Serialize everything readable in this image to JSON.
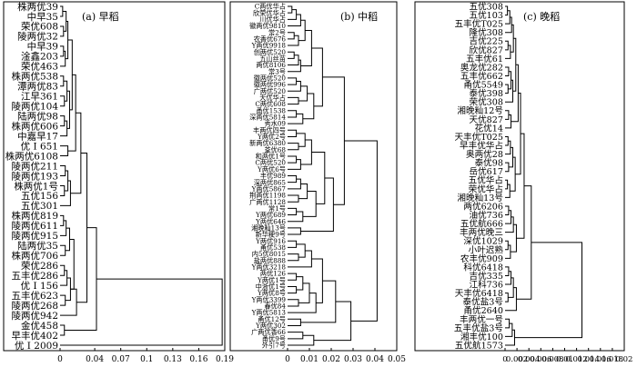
{
  "chart_data": [
    {
      "type": "dendrogram",
      "title": "(a) 早稻",
      "xlim": [
        0,
        0.19
      ],
      "xticks": [
        0,
        0.04,
        0.07,
        0.1,
        0.13,
        0.16,
        0.19
      ],
      "leaves": [
        "株两优39",
        "中早35",
        "荣优608",
        "陵两优32",
        "中早39",
        "淦鑫203",
        "荣优463",
        "株两优538",
        "潭两优83",
        "江早361",
        "陵两优104",
        "陆两优98",
        "株两优606",
        "中嘉早17",
        "优 I 651",
        "株两优6108",
        "陵两优211",
        "陵两优193",
        "株两优1号",
        "五优156",
        "五优301",
        "株两优819",
        "陵两优611",
        "陵两优915",
        "陆两优35",
        "株两优706",
        "荣优286",
        "五丰优286",
        "优 I 156",
        "五丰优623",
        "陵两优268",
        "陵两优942",
        "金优458",
        "早丰优402",
        "优 I 2009"
      ],
      "merges": [
        [
          0,
          1,
          0.003
        ],
        [
          2,
          3,
          0.004
        ],
        [
          -1,
          -2,
          0.007
        ],
        [
          4,
          5,
          0.004
        ],
        [
          -4,
          6,
          0.006
        ],
        [
          -3,
          -5,
          0.009
        ],
        [
          7,
          8,
          0.004
        ],
        [
          9,
          10,
          0.005
        ],
        [
          -7,
          -8,
          0.008
        ],
        [
          11,
          12,
          0.005
        ],
        [
          -10,
          13,
          0.008
        ],
        [
          -9,
          -11,
          0.011
        ],
        [
          -6,
          -12,
          0.014
        ],
        [
          14,
          15,
          0.009
        ],
        [
          -13,
          -14,
          0.018
        ],
        [
          16,
          17,
          0.006
        ],
        [
          18,
          19,
          0.005
        ],
        [
          -16,
          -17,
          0.009
        ],
        [
          -18,
          20,
          0.012
        ],
        [
          -15,
          -19,
          0.024
        ],
        [
          21,
          22,
          0.004
        ],
        [
          -21,
          23,
          0.007
        ],
        [
          24,
          25,
          0.006
        ],
        [
          -22,
          -23,
          0.011
        ],
        [
          26,
          27,
          0.005
        ],
        [
          -25,
          28,
          0.008
        ],
        [
          29,
          30,
          0.006
        ],
        [
          -26,
          -27,
          0.012
        ],
        [
          -24,
          -28,
          0.016
        ],
        [
          -28,
          31,
          0.019
        ],
        [
          -20,
          -30,
          0.031
        ],
        [
          32,
          33,
          0.005
        ],
        [
          -31,
          -32,
          0.042
        ],
        [
          -33,
          34,
          0.187
        ]
      ]
    },
    {
      "type": "dendrogram",
      "title": "(b) 中稻",
      "xlim": [
        0,
        0.05
      ],
      "xticks": [
        0,
        0.01,
        0.02,
        0.03,
        0.04,
        0.05
      ],
      "leaves": [
        "C两优华占",
        "欣荣优华占",
        "川优华占",
        "徽两优9810",
        "常2号",
        "农香优676",
        "Y两优9918",
        "创两优520",
        "五山丝苗",
        "两优8106",
        "常3号",
        "徽两优520",
        "徽两优996",
        "广两优520",
        "天优华占",
        "C两优608",
        "甬优1538",
        "深两优5814",
        "秀水09",
        "丰两优四号",
        "Y两优2号",
        "新两优6380",
        "荃优68",
        "和两优1号",
        "C两优520",
        "Y两优6号",
        "丰优989",
        "深两优865",
        "Y两优5867",
        "荆两优1198",
        "广两优1128",
        "常1号",
        "Y两优689",
        "Y两优646",
        "湘晚籼13号",
        "新华粳9号",
        "Y两优916",
        "甬优538",
        "内5优8015",
        "盐两优888",
        "Y两优3218",
        "两优126",
        "Y两优1号",
        "中浙优1号",
        "Y两优8号",
        "Y两优3399",
        "春优84",
        "Y两优5813",
        "甬优12号",
        "Y两优302",
        "广两优香66",
        "甬优9号",
        "外引7号"
      ],
      "merges": [
        [
          0,
          1,
          0.002
        ],
        [
          -1,
          2,
          0.004
        ],
        [
          -2,
          3,
          0.006
        ],
        [
          4,
          5,
          0.003
        ],
        [
          -4,
          6,
          0.005
        ],
        [
          -3,
          -5,
          0.008
        ],
        [
          7,
          8,
          0.003
        ],
        [
          -7,
          9,
          0.005
        ],
        [
          -8,
          10,
          0.006
        ],
        [
          -6,
          -9,
          0.011
        ],
        [
          11,
          12,
          0.004
        ],
        [
          -11,
          13,
          0.006
        ],
        [
          14,
          15,
          0.005
        ],
        [
          -12,
          -13,
          0.009
        ],
        [
          16,
          17,
          0.004
        ],
        [
          -15,
          18,
          0.007
        ],
        [
          -14,
          -16,
          0.012
        ],
        [
          -10,
          -17,
          0.016
        ],
        [
          19,
          20,
          0.004
        ],
        [
          21,
          22,
          0.005
        ],
        [
          -19,
          -20,
          0.008
        ],
        [
          23,
          24,
          0.004
        ],
        [
          -22,
          25,
          0.006
        ],
        [
          -21,
          -23,
          0.011
        ],
        [
          26,
          27,
          0.004
        ],
        [
          -25,
          28,
          0.006
        ],
        [
          29,
          30,
          0.005
        ],
        [
          -26,
          -27,
          0.009
        ],
        [
          31,
          32,
          0.004
        ],
        [
          -29,
          33,
          0.007
        ],
        [
          -28,
          -30,
          0.013
        ],
        [
          -24,
          -31,
          0.017
        ],
        [
          34,
          35,
          0.006
        ],
        [
          -32,
          -33,
          0.021
        ],
        [
          -18,
          -34,
          0.026
        ],
        [
          36,
          37,
          0.004
        ],
        [
          38,
          39,
          0.005
        ],
        [
          -36,
          -37,
          0.008
        ],
        [
          -38,
          40,
          0.011
        ],
        [
          41,
          42,
          0.004
        ],
        [
          43,
          44,
          0.004
        ],
        [
          -40,
          -41,
          0.007
        ],
        [
          45,
          46,
          0.005
        ],
        [
          -42,
          -43,
          0.01
        ],
        [
          -44,
          47,
          0.013
        ],
        [
          -39,
          -45,
          0.016
        ],
        [
          48,
          49,
          0.006
        ],
        [
          -46,
          -47,
          0.022
        ],
        [
          50,
          51,
          0.007
        ],
        [
          -49,
          52,
          0.012
        ],
        [
          -48,
          -50,
          0.029
        ],
        [
          -35,
          -51,
          0.041
        ]
      ]
    },
    {
      "type": "dendrogram",
      "title": "(c) 晚稻",
      "xlim": [
        0,
        0.02
      ],
      "xticks": [
        0,
        0.002,
        0.004,
        0.006,
        0.008,
        0.01,
        0.012,
        0.014,
        0.016,
        0.018,
        0.02
      ],
      "leaves": [
        "五优308",
        "五优103",
        "五丰优T025",
        "隆优308",
        "吉优225",
        "欣优827",
        "五丰优61",
        "奥龙优282",
        "五丰优662",
        "甬优5549",
        "泰优398",
        "荣优308",
        "湘晚籼12号",
        "天优827",
        "花优14",
        "天丰优T025",
        "早丰优华占",
        "奥两优28",
        "泰优98",
        "岳优617",
        "五优华占",
        "荣优华占",
        "湘晚籼13号",
        "两优6206",
        "油优736",
        "五优航666",
        "丰两优晚三",
        "深优1029",
        "小叶迟熟",
        "农丰优909",
        "科优6418",
        "吉优335",
        "江科736",
        "天丰优6418",
        "泰优盐3号",
        "甬优2640",
        "丰两优一号",
        "五丰优盐3号",
        "湘丰优100",
        "五优航1573"
      ],
      "merges": [
        [
          0,
          1,
          0.0004
        ],
        [
          -1,
          2,
          0.0008
        ],
        [
          -2,
          3,
          0.0011
        ],
        [
          4,
          5,
          0.0005
        ],
        [
          -4,
          6,
          0.0009
        ],
        [
          -3,
          -5,
          0.0014
        ],
        [
          7,
          8,
          0.0006
        ],
        [
          9,
          10,
          0.0005
        ],
        [
          -7,
          -8,
          0.001
        ],
        [
          -9,
          11,
          0.0013
        ],
        [
          -6,
          -10,
          0.0018
        ],
        [
          12,
          13,
          0.0006
        ],
        [
          -12,
          14,
          0.001
        ],
        [
          -11,
          -13,
          0.0022
        ],
        [
          15,
          16,
          0.0005
        ],
        [
          -15,
          17,
          0.0009
        ],
        [
          18,
          19,
          0.0006
        ],
        [
          -16,
          -17,
          0.0013
        ],
        [
          20,
          21,
          0.0004
        ],
        [
          -19,
          22,
          0.0008
        ],
        [
          -18,
          -20,
          0.0017
        ],
        [
          -14,
          -21,
          0.0026
        ],
        [
          23,
          24,
          0.0006
        ],
        [
          -23,
          25,
          0.001
        ],
        [
          -24,
          26,
          0.0014
        ],
        [
          27,
          28,
          0.0005
        ],
        [
          -26,
          29,
          0.0009
        ],
        [
          -25,
          -27,
          0.0019
        ],
        [
          -22,
          -28,
          0.0032
        ],
        [
          30,
          31,
          0.0006
        ],
        [
          -30,
          32,
          0.001
        ],
        [
          33,
          34,
          0.0005
        ],
        [
          -31,
          -32,
          0.0014
        ],
        [
          -33,
          35,
          0.0019
        ],
        [
          -29,
          -34,
          0.0044
        ],
        [
          36,
          37,
          0.0007
        ],
        [
          -36,
          38,
          0.0012
        ],
        [
          -37,
          39,
          0.0016
        ],
        [
          -35,
          -38,
          0.0129
        ]
      ]
    }
  ]
}
